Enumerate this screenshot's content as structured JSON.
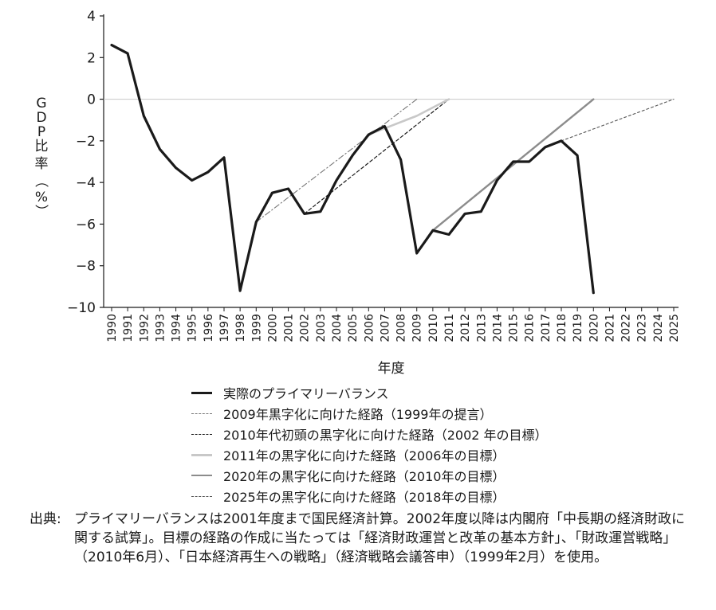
{
  "chart_data": {
    "type": "line",
    "title": "",
    "xlabel": "年度",
    "ylabel": "GDP比率（%）",
    "ylim": [
      -10,
      4
    ],
    "yticks": [
      4,
      2,
      0,
      -2,
      -4,
      -6,
      -8,
      -10
    ],
    "ytick_labels": [
      "4",
      "2",
      "0",
      "−2",
      "−4",
      "−6",
      "−8",
      "−10"
    ],
    "xlim": [
      1990,
      2025
    ],
    "xticks": [
      1990,
      1991,
      1992,
      1993,
      1994,
      1995,
      1996,
      1997,
      1998,
      1999,
      2000,
      2001,
      2002,
      2003,
      2004,
      2005,
      2006,
      2007,
      2008,
      2009,
      2010,
      2011,
      2012,
      2013,
      2014,
      2015,
      2016,
      2017,
      2018,
      2019,
      2020,
      2021,
      2022,
      2023,
      2024,
      2025
    ],
    "zero_line": true,
    "grid": false,
    "legend_position": "bottom",
    "series": [
      {
        "name": "実際のプライマリーバランス",
        "style": "solid-thick",
        "color": "#1a1a1a",
        "x": [
          1990,
          1991,
          1992,
          1993,
          1994,
          1995,
          1996,
          1997,
          1998,
          1999,
          2000,
          2001,
          2002,
          2003,
          2004,
          2005,
          2006,
          2007,
          2008,
          2009,
          2010,
          2011,
          2012,
          2013,
          2014,
          2015,
          2016,
          2017,
          2018,
          2019,
          2020
        ],
        "y": [
          2.6,
          2.2,
          -0.8,
          -2.4,
          -3.3,
          -3.9,
          -3.5,
          -2.8,
          -9.2,
          -5.9,
          -4.5,
          -4.3,
          -5.5,
          -5.4,
          -3.9,
          -2.7,
          -1.7,
          -1.3,
          -2.9,
          -7.4,
          -6.3,
          -6.5,
          -5.5,
          -5.4,
          -3.9,
          -3.0,
          -3.0,
          -2.3,
          -2.0,
          -2.7,
          -9.3
        ]
      },
      {
        "name": "2009年黒字化に向けた経路（1999年の提言）",
        "style": "dashdot",
        "color": "#777777",
        "x": [
          1999,
          2009
        ],
        "y": [
          -5.9,
          0.0
        ]
      },
      {
        "name": "2010年代初頭の黒字化に向けた経路（2002 年の目標）",
        "style": "dashed",
        "color": "#1a1a1a",
        "x": [
          2002,
          2011
        ],
        "y": [
          -5.5,
          0.0
        ]
      },
      {
        "name": "2011年の黒字化に向けた経路（2006年の目標）",
        "style": "solid-light",
        "color": "#c8c8c8",
        "x": [
          2006,
          2007,
          2008,
          2009,
          2010,
          2011
        ],
        "y": [
          -1.7,
          -1.4,
          -1.1,
          -0.8,
          -0.4,
          0.0
        ]
      },
      {
        "name": "2020年の黒字化に向けた経路（2010年の目標）",
        "style": "solid-medium",
        "color": "#8c8c8c",
        "x": [
          2010,
          2020
        ],
        "y": [
          -6.3,
          0.0
        ]
      },
      {
        "name": "2025年の黒字化に向けた経路（2018年の目標）",
        "style": "dotted",
        "color": "#555555",
        "x": [
          2018,
          2025
        ],
        "y": [
          -2.0,
          0.0
        ]
      }
    ]
  },
  "source_note": {
    "prefix": "出典:",
    "text": "プライマリーバランスは2001年度まで国民経済計算。2002年度以降は内閣府「中長期の経済財政に関する試算」。目標の経路の作成に当たっては「経済財政運営と改革の基本方針」、「財政運営戦略」（2010年6月）、「日本経済再生への戦略」（経済戦略会議答申）（1999年2月）を使用。"
  }
}
